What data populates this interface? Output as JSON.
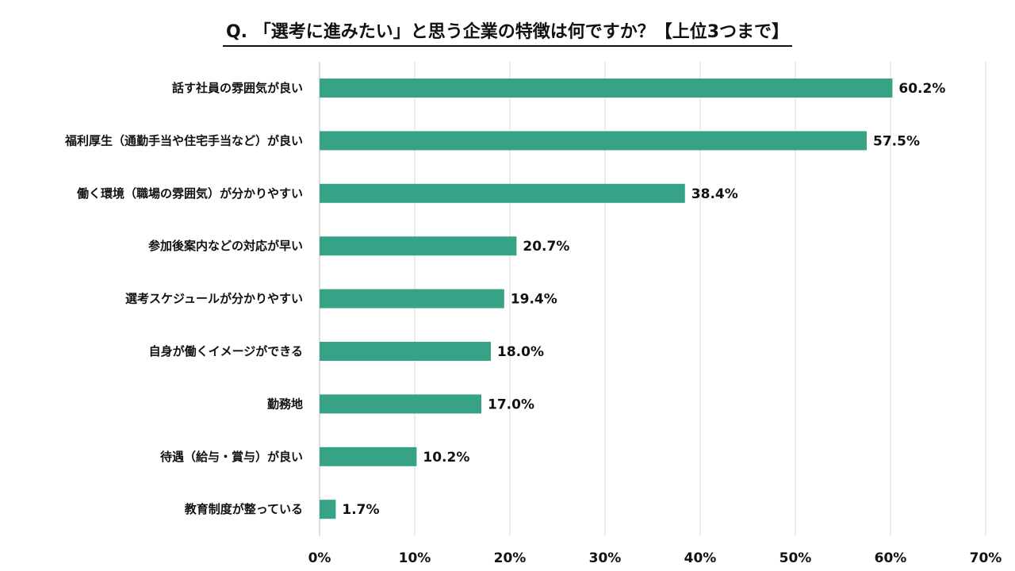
{
  "chart_data": {
    "type": "bar",
    "orientation": "horizontal",
    "title": "Q. 「選考に進みたい」と思う企業の特徴は何ですか？【上位3つまで】",
    "categories": [
      "話す社員の雰囲気が良い",
      "福利厚生（通勤手当や住宅手当など）が良い",
      "働く環境（職場の雰囲気）が分かりやすい",
      "参加後案内などの対応が早い",
      "選考スケジュールが分かりやすい",
      "自身が働くイメージができる",
      "勤務地",
      "待遇（給与・賞与）が良い",
      "教育制度が整っている"
    ],
    "values": [
      60.2,
      57.5,
      38.4,
      20.7,
      19.4,
      18.0,
      17.0,
      10.2,
      1.7
    ],
    "value_labels": [
      "60.2%",
      "57.5%",
      "38.4%",
      "20.7%",
      "19.4%",
      "18.0%",
      "17.0%",
      "10.2%",
      "1.7%"
    ],
    "xlim": [
      0,
      70
    ],
    "xticks": [
      0,
      10,
      20,
      30,
      40,
      50,
      60,
      70
    ],
    "xtick_labels": [
      "0%",
      "10%",
      "20%",
      "30%",
      "40%",
      "50%",
      "60%",
      "70%"
    ],
    "xlabel": "",
    "ylabel": "",
    "grid": "vertical",
    "bar_color": "#36A386"
  }
}
